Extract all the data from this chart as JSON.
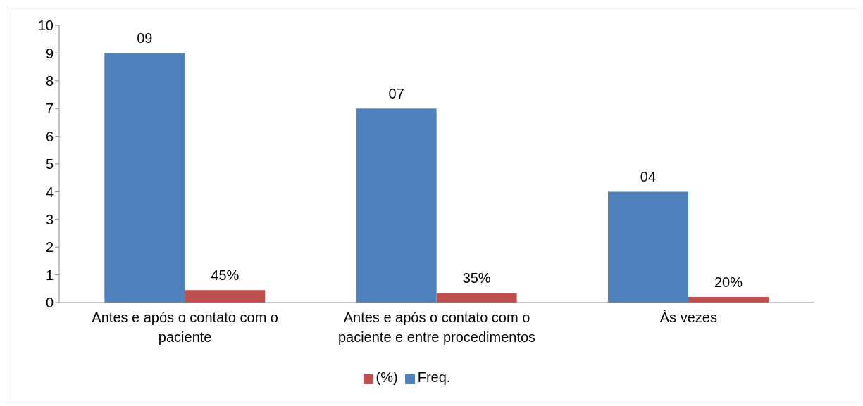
{
  "chart_data": {
    "type": "bar",
    "categories": [
      "Antes e após o contato com o paciente",
      "Antes e após o contato com o paciente e entre procedimentos",
      "Às vezes"
    ],
    "series": [
      {
        "name": "Freq.",
        "color": "#4f81bd",
        "values": [
          9,
          7,
          4
        ],
        "value_labels": [
          "09",
          "07",
          "04"
        ]
      },
      {
        "name": "(%)",
        "color": "#c0504d",
        "values": [
          0.45,
          0.35,
          0.2
        ],
        "value_labels": [
          "45%",
          "35%",
          "20%"
        ]
      }
    ],
    "ylim": [
      0,
      10
    ],
    "yticks": [
      0,
      1,
      2,
      3,
      4,
      5,
      6,
      7,
      8,
      9,
      10
    ],
    "legend": "bottom"
  }
}
